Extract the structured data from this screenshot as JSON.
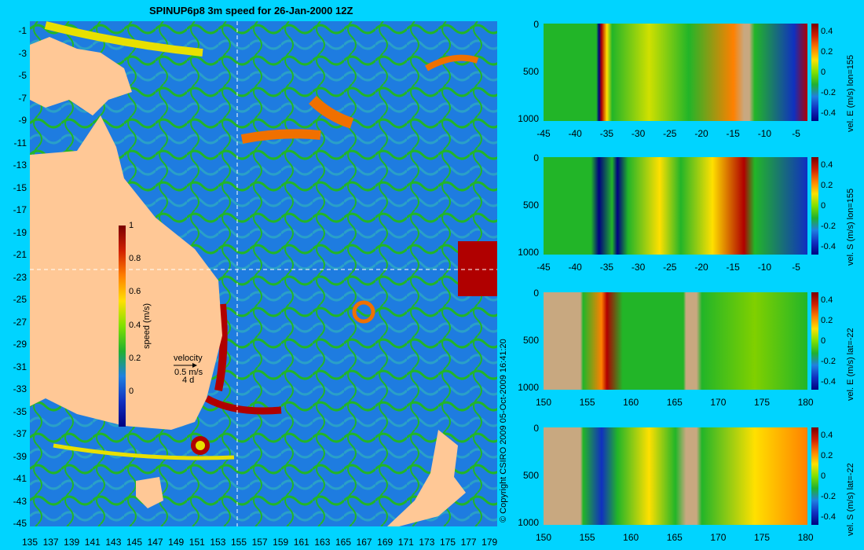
{
  "title": "SPINUP6p8 3m speed for 26-Jan-2000 12Z",
  "map": {
    "lat_ticks": [
      "-1",
      "-3",
      "-5",
      "-7",
      "-9",
      "-11",
      "-13",
      "-15",
      "-17",
      "-19",
      "-21",
      "-23",
      "-25",
      "-27",
      "-29",
      "-31",
      "-33",
      "-35",
      "-37",
      "-39",
      "-41",
      "-43",
      "-45"
    ],
    "lon_ticks": [
      "135",
      "137",
      "139",
      "141",
      "143",
      "145",
      "147",
      "149",
      "151",
      "153",
      "155",
      "157",
      "159",
      "161",
      "163",
      "165",
      "167",
      "169",
      "171",
      "173",
      "175",
      "177",
      "179"
    ],
    "speed_colorbar": {
      "label": "speed (m/s)",
      "ticks": [
        "1",
        "0.8",
        "0.6",
        "0.4",
        "0.2",
        "0"
      ]
    },
    "velocity_legend": {
      "title": "velocity",
      "scale": "0.5 m/s",
      "duration": "4 d"
    },
    "colors": {
      "land": "#ffc896",
      "ocean_low": "#1e7ce0",
      "ocean_mid": "#22b528",
      "ocean_high": "#b00000"
    }
  },
  "copyright": "© Copyright CSIRO 2009   05-Oct-2009 16:41:20",
  "sections": [
    {
      "label": "vel. E (m/s) lon=155",
      "x_ticks": [
        "-45",
        "-40",
        "-35",
        "-30",
        "-25",
        "-20",
        "-15",
        "-10",
        "-5"
      ],
      "y_ticks": [
        "0",
        "500",
        "1000"
      ],
      "cbar_ticks": [
        "0.4",
        "0.2",
        "0",
        "-0.2",
        "-0.4"
      ]
    },
    {
      "label": "vel. S (m/s) lon=155",
      "x_ticks": [
        "-45",
        "-40",
        "-35",
        "-30",
        "-25",
        "-20",
        "-15",
        "-10",
        "-5"
      ],
      "y_ticks": [
        "0",
        "500",
        "1000"
      ],
      "cbar_ticks": [
        "0.4",
        "0.2",
        "0",
        "-0.2",
        "-0.4"
      ]
    },
    {
      "label": "vel. E (m/s) lat=-22",
      "x_ticks": [
        "150",
        "155",
        "160",
        "165",
        "170",
        "175",
        "180"
      ],
      "y_ticks": [
        "0",
        "500",
        "1000"
      ],
      "cbar_ticks": [
        "0.4",
        "0.2",
        "0",
        "-0.2",
        "-0.4"
      ]
    },
    {
      "label": "vel. S (m/s) lat=-22",
      "x_ticks": [
        "150",
        "155",
        "160",
        "165",
        "170",
        "175",
        "180"
      ],
      "y_ticks": [
        "0",
        "500",
        "1000"
      ],
      "cbar_ticks": [
        "0.4",
        "0.2",
        "0",
        "-0.2",
        "-0.4"
      ]
    }
  ]
}
